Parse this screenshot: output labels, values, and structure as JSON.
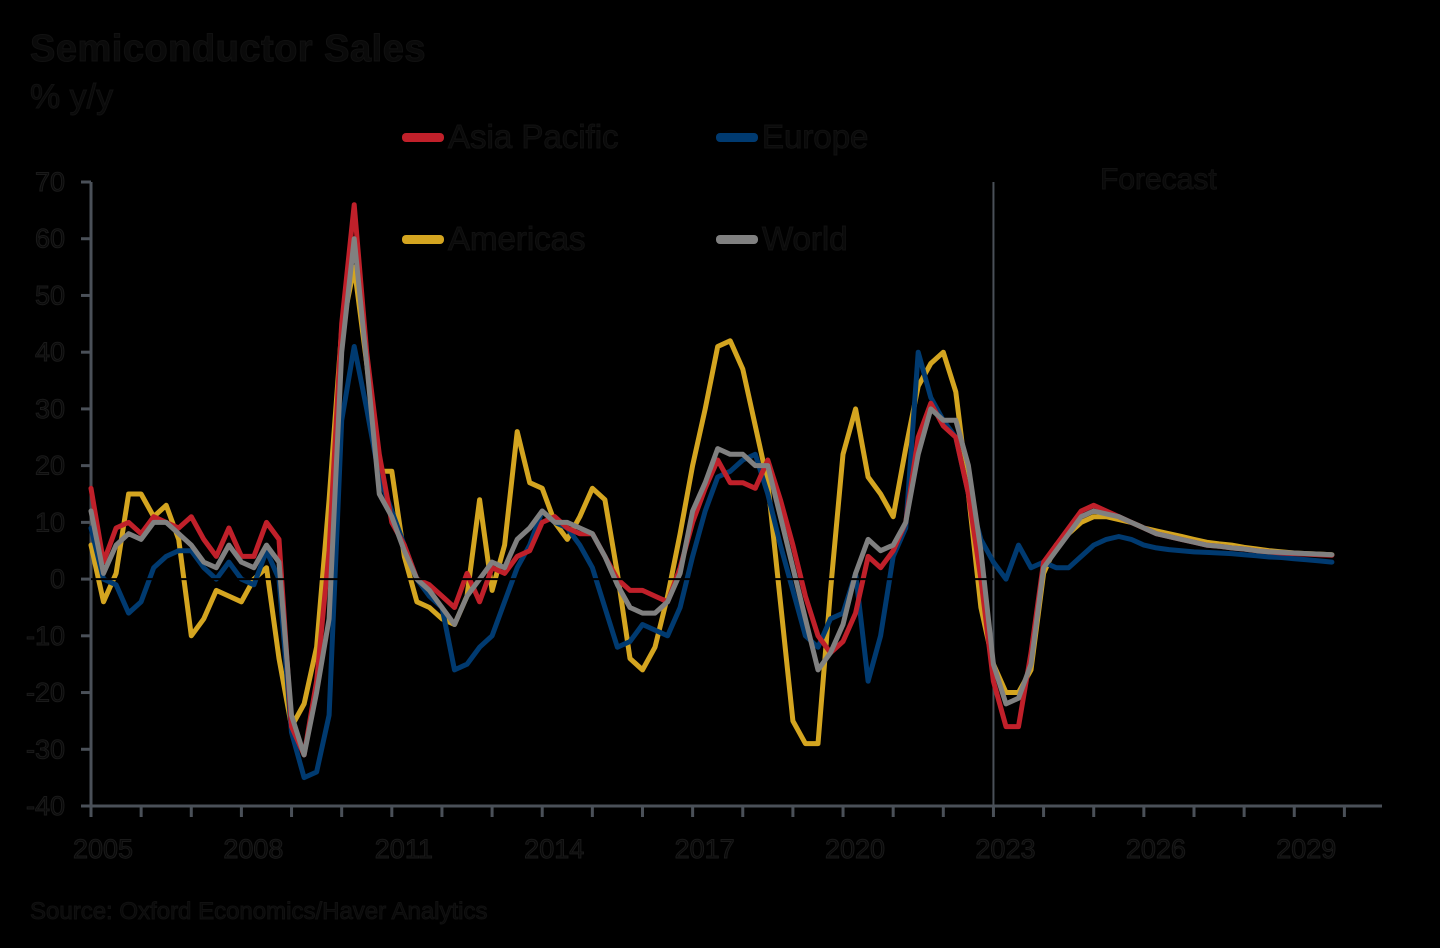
{
  "header": {
    "title": "Semiconductor Sales",
    "subtitle": "% y/y"
  },
  "legend": [
    {
      "label": "Asia Pacific",
      "color": "#c0202a"
    },
    {
      "label": "Europe",
      "color": "#003a70"
    },
    {
      "label": "Americas",
      "color": "#d4a520"
    },
    {
      "label": "World",
      "color": "#808080"
    }
  ],
  "annotation": {
    "forecast_label": "Forecast"
  },
  "footer": {
    "source": "Source: Oxford Economics/Haver Analytics"
  },
  "colors": {
    "axis": "#4a5058",
    "zero_line": "#000000",
    "background": "#000000"
  },
  "chart_data": {
    "type": "line",
    "title": "Semiconductor Sales",
    "subtitle": "% y/y",
    "xlabel": "",
    "ylabel": "% y/y",
    "ylim": [
      -40,
      70
    ],
    "yticks": [
      70,
      60,
      50,
      40,
      30,
      20,
      10,
      0,
      -10,
      -20,
      -30,
      -40
    ],
    "xlim": [
      2005,
      2030.75
    ],
    "xticks_labeled": [
      "2005",
      "2008",
      "2011",
      "2014",
      "2017",
      "2020",
      "2023",
      "2026",
      "2029"
    ],
    "grid": false,
    "legend_position": "top, two columns",
    "forecast_start": 2023,
    "x_frequency": "quarterly",
    "x_start": 2005.0,
    "x_step": 0.25,
    "series": [
      {
        "name": "Asia Pacific",
        "color": "#c0202a",
        "values": [
          16,
          3,
          9,
          10,
          8,
          11,
          10,
          9,
          11,
          7,
          4,
          9,
          4,
          4,
          10,
          7,
          -26,
          -31,
          -18,
          5,
          45,
          66,
          40,
          22,
          10,
          6,
          0,
          -1,
          -3,
          -5,
          1,
          -4,
          2,
          1,
          4,
          5,
          10,
          11,
          9,
          8,
          8,
          4,
          0,
          -2,
          -2,
          -3,
          -4,
          2,
          10,
          16,
          21,
          17,
          17,
          16,
          21,
          14,
          6,
          -3,
          -10,
          -13,
          -11,
          -6,
          4,
          2,
          5,
          10,
          25,
          31,
          27,
          25,
          15,
          0,
          -18,
          -26,
          -26,
          -13,
          3,
          6,
          9,
          12,
          13,
          12,
          11,
          10,
          9,
          8,
          7.5,
          7,
          6.5,
          6,
          5.8,
          5.5,
          5.3,
          5,
          4.8,
          4.6,
          4.5,
          4.4,
          4.3,
          4.2
        ]
      },
      {
        "name": "Europe",
        "color": "#003a70",
        "values": [
          9,
          0,
          -1,
          -6,
          -4,
          2,
          4,
          5,
          5,
          2,
          0,
          3,
          0,
          -1,
          5,
          0,
          -27,
          -35,
          -34,
          -24,
          28,
          41,
          30,
          18,
          12,
          6,
          0,
          -3,
          -5,
          -16,
          -15,
          -12,
          -10,
          -4,
          2,
          6,
          12,
          10,
          9,
          6,
          2,
          -5,
          -12,
          -11,
          -8,
          -9,
          -10,
          -5,
          4,
          12,
          18,
          19,
          21,
          22,
          15,
          6,
          -2,
          -10,
          -12,
          -7,
          -6,
          1,
          -18,
          -10,
          4,
          9,
          40,
          32,
          28,
          25,
          15,
          7,
          3,
          0,
          6,
          2,
          3,
          2,
          2,
          4,
          6,
          7,
          7.5,
          7,
          6,
          5.5,
          5.2,
          5,
          4.8,
          4.7,
          4.6,
          4.5,
          4.3,
          4.1,
          3.9,
          3.8,
          3.6,
          3.4,
          3.2,
          3
        ]
      },
      {
        "name": "Americas",
        "color": "#d4a520",
        "values": [
          6,
          -4,
          1,
          15,
          15,
          11,
          13,
          7,
          -10,
          -7,
          -2,
          -3,
          -4,
          0,
          2,
          -14,
          -26,
          -22,
          -12,
          14,
          44,
          55,
          38,
          19,
          19,
          4,
          -4,
          -5,
          -7,
          -8,
          -3,
          14,
          -2,
          6,
          26,
          17,
          16,
          10,
          7,
          11,
          16,
          14,
          1,
          -14,
          -16,
          -12,
          -3,
          8,
          20,
          30,
          41,
          42,
          37,
          27,
          17,
          -4,
          -25,
          -29,
          -29,
          -2,
          22,
          30,
          18,
          15,
          11,
          23,
          34,
          38,
          40,
          33,
          15,
          -5,
          -15,
          -20,
          -20,
          -16,
          1,
          6,
          8,
          10,
          11,
          11,
          10.5,
          10,
          9,
          8.5,
          8,
          7.5,
          7,
          6.5,
          6.2,
          6,
          5.6,
          5.3,
          5,
          4.8,
          4.6,
          4.5,
          4.4,
          4.3
        ]
      },
      {
        "name": "World",
        "color": "#808080",
        "values": [
          12,
          1,
          6,
          8,
          7,
          10,
          10,
          8,
          6,
          3,
          2,
          6,
          3,
          2,
          6,
          3,
          -24,
          -31,
          -20,
          -7,
          40,
          60,
          38,
          15,
          11,
          5,
          0,
          -2,
          -5,
          -8,
          -3,
          0,
          3,
          2,
          7,
          9,
          12,
          10,
          10,
          9,
          8,
          4,
          -1,
          -5,
          -6,
          -6,
          -4,
          1,
          12,
          17,
          23,
          22,
          22,
          20,
          20,
          11,
          2,
          -7,
          -16,
          -13,
          -8,
          1,
          7,
          5,
          6,
          10,
          22,
          30,
          28,
          28,
          20,
          5,
          -15,
          -22,
          -21,
          -15,
          2,
          5,
          8,
          11,
          12,
          11.5,
          11,
          10,
          9,
          8,
          7.5,
          7,
          6.5,
          6,
          5.8,
          5.5,
          5.3,
          5,
          4.8,
          4.7,
          4.6,
          4.5,
          4.4,
          4.3
        ]
      }
    ]
  }
}
